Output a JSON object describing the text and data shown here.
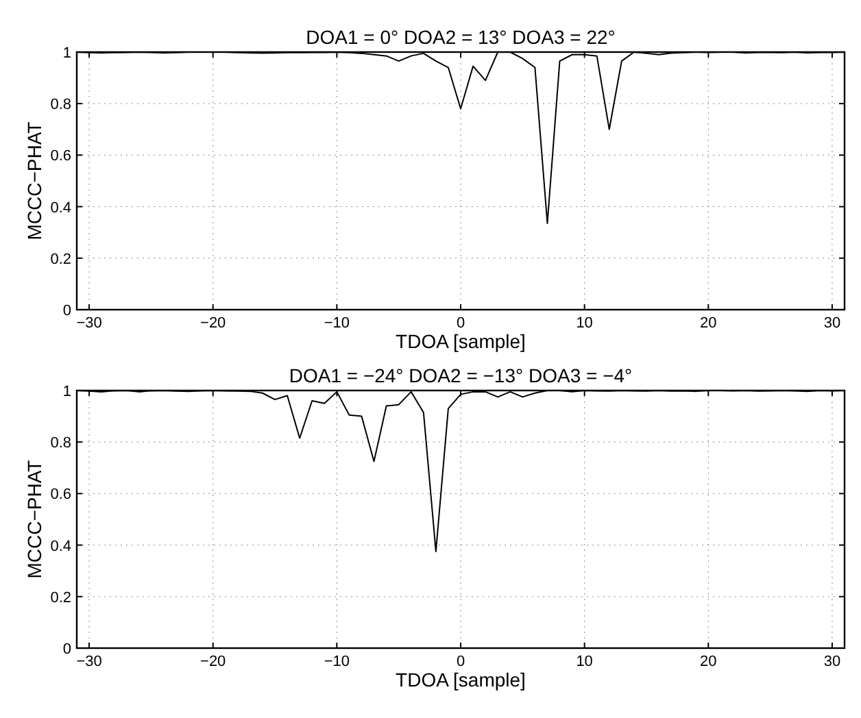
{
  "chart_data": [
    {
      "type": "line",
      "title": "DOA1 = 0°  DOA2 = 13°  DOA3 = 22°",
      "xlabel": "TDOA [sample]",
      "ylabel": "MCCC−PHAT",
      "grid": true,
      "line_style": "solid",
      "xlim": [
        -31,
        31
      ],
      "ylim": [
        0,
        1
      ],
      "xticks": [
        {
          "value": -30,
          "label": "−30"
        },
        {
          "value": -20,
          "label": "−20"
        },
        {
          "value": -10,
          "label": "−10"
        },
        0,
        10,
        20,
        30
      ],
      "yticks": [
        0,
        0.2,
        0.4,
        0.6,
        0.8,
        1
      ],
      "x": [
        -31,
        -30,
        -29,
        -28,
        -27,
        -26,
        -25,
        -24,
        -23,
        -22,
        -21,
        -20,
        -19,
        -18,
        -17,
        -16,
        -15,
        -14,
        -13,
        -12,
        -11,
        -10,
        -9,
        -8,
        -7,
        -6,
        -5,
        -4,
        -3,
        -2,
        -1,
        0,
        1,
        2,
        3,
        4,
        5,
        6,
        7,
        8,
        9,
        10,
        11,
        12,
        13,
        14,
        15,
        16,
        17,
        18,
        19,
        20,
        21,
        22,
        23,
        24,
        25,
        26,
        27,
        28,
        29,
        30,
        31
      ],
      "series": [
        {
          "color": "#000000",
          "values": [
            1,
            0.998,
            0.997,
            0.998,
            0.999,
            1,
            0.999,
            0.997,
            0.998,
            1,
            1,
            1,
            1,
            0.998,
            0.997,
            0.996,
            0.997,
            0.998,
            0.998,
            0.999,
            0.999,
            1,
            0.998,
            0.995,
            0.99,
            0.985,
            0.965,
            0.985,
            0.995,
            0.965,
            0.94,
            0.78,
            0.945,
            0.89,
            1,
            1,
            0.975,
            0.94,
            0.335,
            0.965,
            0.99,
            0.99,
            0.985,
            0.7,
            0.965,
            1,
            0.995,
            0.99,
            0.996,
            0.998,
            1,
            0.999,
            1,
            1,
            0.997,
            0.999,
            0.999,
            0.998,
            1,
            0.997,
            0.999,
            0.999,
            1
          ]
        }
      ]
    },
    {
      "type": "line",
      "title": "DOA1 = −24° DOA2 = −13°  DOA3 = −4°",
      "xlabel": "TDOA [sample]",
      "ylabel": "MCCC−PHAT",
      "grid": true,
      "line_style": "solid",
      "xlim": [
        -31,
        31
      ],
      "ylim": [
        0,
        1
      ],
      "xticks": [
        {
          "value": -30,
          "label": "−30"
        },
        {
          "value": -20,
          "label": "−20"
        },
        {
          "value": -10,
          "label": "−10"
        },
        0,
        10,
        20,
        30
      ],
      "yticks": [
        0,
        0.2,
        0.4,
        0.6,
        0.8,
        1
      ],
      "x": [
        -31,
        -30,
        -29,
        -28,
        -27,
        -26,
        -25,
        -24,
        -23,
        -22,
        -21,
        -20,
        -19,
        -18,
        -17,
        -16,
        -15,
        -14,
        -13,
        -12,
        -11,
        -10,
        -9,
        -8,
        -7,
        -6,
        -5,
        -4,
        -3,
        -2,
        -1,
        0,
        1,
        2,
        3,
        4,
        5,
        6,
        7,
        8,
        9,
        10,
        11,
        12,
        13,
        14,
        15,
        16,
        17,
        18,
        19,
        20,
        21,
        22,
        23,
        24,
        25,
        26,
        27,
        28,
        29,
        30,
        31
      ],
      "series": [
        {
          "color": "#000000",
          "values": [
            1,
            0.998,
            0.995,
            0.999,
            1,
            0.995,
            0.999,
            1,
            0.998,
            0.997,
            0.999,
            1,
            0.999,
            0.998,
            0.997,
            0.99,
            0.965,
            0.98,
            0.815,
            0.96,
            0.95,
            0.995,
            0.905,
            0.9,
            0.725,
            0.94,
            0.945,
            0.995,
            0.915,
            0.375,
            0.93,
            0.985,
            0.995,
            0.995,
            0.975,
            0.995,
            0.975,
            0.99,
            1,
            1,
            0.995,
            1,
            0.999,
            0.998,
            1,
            0.999,
            0.998,
            1,
            0.998,
            0.999,
            0.997,
            1,
            1,
            0.999,
            1,
            0.998,
            0.999,
            1,
            0.999,
            0.997,
            1,
            0.999,
            1
          ]
        }
      ]
    }
  ]
}
